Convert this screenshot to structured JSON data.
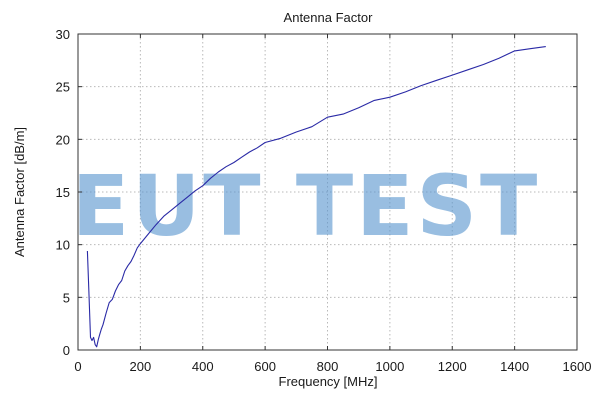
{
  "chart_data": {
    "type": "line",
    "title": "Antenna Factor",
    "xlabel": "Frequency [MHz]",
    "ylabel": "Antenna Factor [dB/m]",
    "xlim": [
      0,
      1600
    ],
    "ylim": [
      0,
      30
    ],
    "xticks": [
      0,
      200,
      400,
      600,
      800,
      1000,
      1200,
      1400,
      1600
    ],
    "yticks": [
      0,
      5,
      10,
      15,
      20,
      25,
      30
    ],
    "grid": true,
    "series": [
      {
        "color": "#2a2aa6",
        "x": [
          30,
          35,
          40,
          45,
          50,
          55,
          60,
          65,
          70,
          75,
          80,
          90,
          100,
          110,
          120,
          130,
          140,
          150,
          160,
          170,
          180,
          190,
          200,
          225,
          250,
          275,
          300,
          325,
          350,
          375,
          400,
          425,
          450,
          475,
          500,
          525,
          550,
          575,
          600,
          650,
          700,
          750,
          800,
          850,
          900,
          950,
          1000,
          1050,
          1100,
          1150,
          1200,
          1250,
          1300,
          1350,
          1400,
          1450,
          1500
        ],
        "y": [
          9.4,
          5.5,
          1.2,
          0.9,
          1.2,
          0.5,
          0.3,
          1.0,
          1.5,
          2.0,
          2.4,
          3.5,
          4.5,
          4.8,
          5.6,
          6.2,
          6.6,
          7.5,
          8.0,
          8.4,
          9.0,
          9.7,
          10.1,
          11.0,
          11.9,
          12.7,
          13.3,
          13.9,
          14.5,
          15.1,
          15.6,
          16.3,
          16.9,
          17.4,
          17.8,
          18.3,
          18.8,
          19.2,
          19.7,
          20.1,
          20.7,
          21.2,
          22.1,
          22.4,
          23.0,
          23.7,
          24.0,
          24.5,
          25.1,
          25.6,
          26.1,
          26.6,
          27.1,
          27.7,
          28.4,
          28.6,
          28.8
        ]
      }
    ]
  },
  "watermark": {
    "text": "EUT TEST",
    "color": "#5b97cf"
  }
}
